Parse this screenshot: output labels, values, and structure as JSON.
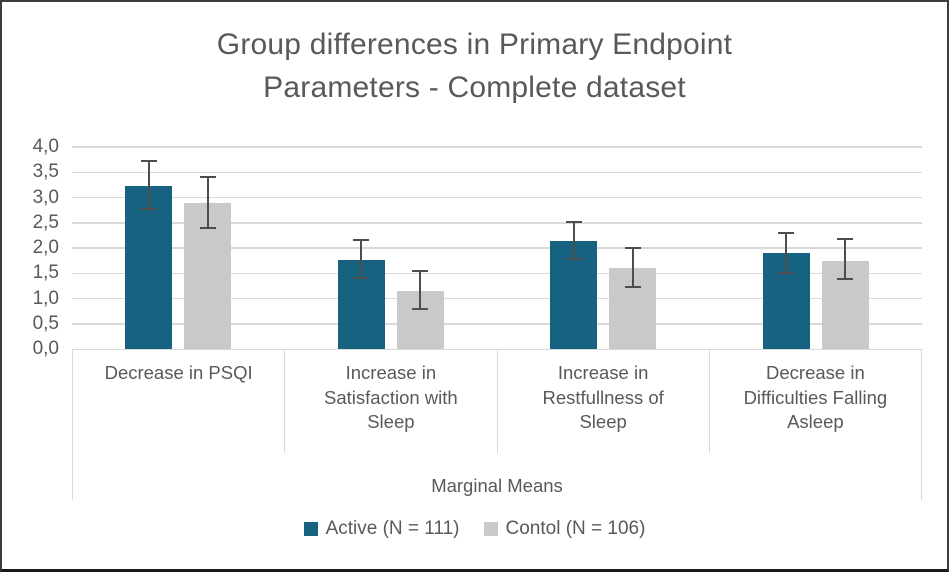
{
  "window": {
    "background": "#ffffff",
    "border_color": "#3c3c3c"
  },
  "chart_data": {
    "type": "bar",
    "title": "Group differences in Primary Endpoint Parameters - Complete dataset",
    "title_lines": [
      "Group differences in Primary Endpoint",
      "Parameters - Complete dataset"
    ],
    "categories": [
      "Decrease in PSQI",
      "Increase in Satisfaction with Sleep",
      "Increase in Restfullness of Sleep",
      "Decrease in Difficulties Falling Asleep"
    ],
    "category_lines": [
      [
        "Decrease in PSQI"
      ],
      [
        "Increase in",
        "Satisfaction with",
        "Sleep"
      ],
      [
        "Increase in",
        "Restfullness of",
        "Sleep"
      ],
      [
        "Decrease in",
        "Difficulties Falling",
        "Asleep"
      ]
    ],
    "axis_group_label": "Marginal Means",
    "series": [
      {
        "name": "Active (N = 111)",
        "color": "#176280",
        "values": [
          3.22,
          1.77,
          2.13,
          1.9
        ],
        "error_low": [
          2.78,
          1.4,
          1.78,
          1.5
        ],
        "error_high": [
          3.72,
          2.15,
          2.52,
          2.3
        ]
      },
      {
        "name": "Contol (N = 106)",
        "color": "#c9c9c9",
        "values": [
          2.9,
          1.15,
          1.6,
          1.75
        ],
        "error_low": [
          2.4,
          0.8,
          1.22,
          1.38
        ],
        "error_high": [
          3.4,
          1.55,
          2.0,
          2.18
        ]
      }
    ],
    "ylim": [
      0,
      4
    ],
    "ytick_step": 0.5,
    "ytick_labels": [
      "0,0",
      "0,5",
      "1,0",
      "1,5",
      "2,0",
      "2,5",
      "3,0",
      "3,5",
      "4,0"
    ],
    "grid": true,
    "gridline_color": "#d9d9d9",
    "error_bar_color": "#4d4d4d",
    "text_color": "#595959",
    "legend_position": "bottom"
  }
}
